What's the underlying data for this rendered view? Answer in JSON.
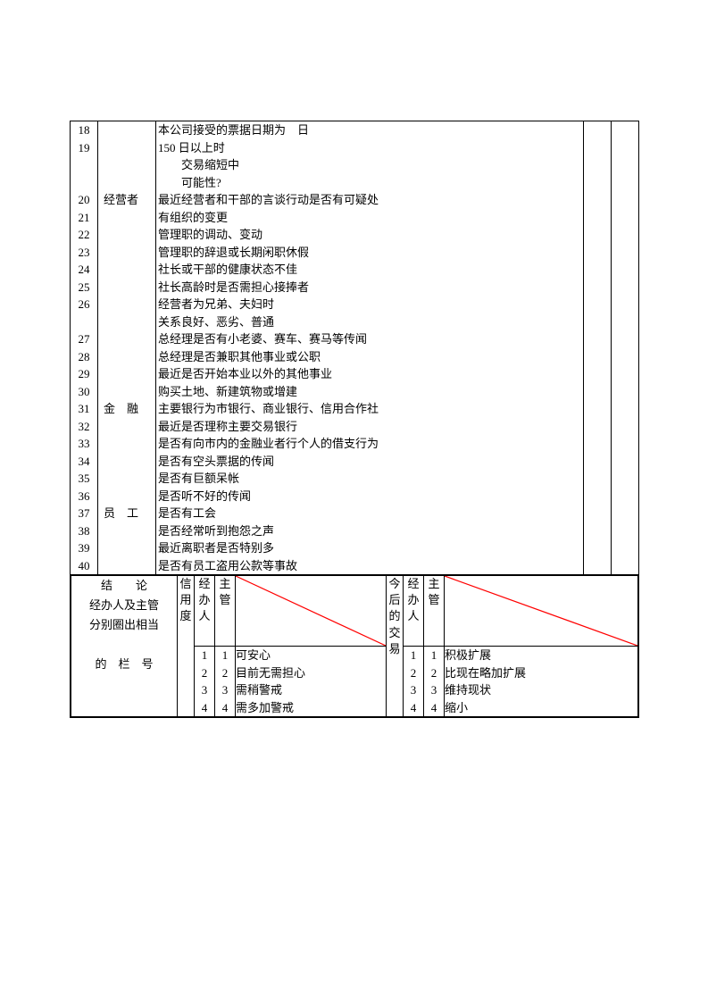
{
  "rows": [
    {
      "num": "18",
      "cat": "",
      "lines": [
        "本公司接受的票据日期为　日"
      ]
    },
    {
      "num": "19",
      "cat": "",
      "lines": [
        "150 日以上时",
        "　　交易缩短中",
        "　　可能性?"
      ]
    },
    {
      "num": "20",
      "cat": "经营者",
      "lines": [
        "最近经营者和干部的言谈行动是否有可疑处"
      ]
    },
    {
      "num": "21",
      "cat": "",
      "lines": [
        "有组织的变更"
      ]
    },
    {
      "num": "22",
      "cat": "",
      "lines": [
        "管理职的调动、变动"
      ]
    },
    {
      "num": "23",
      "cat": "",
      "lines": [
        "管理职的辞退或长期闲职休假"
      ]
    },
    {
      "num": "24",
      "cat": "",
      "lines": [
        "社长或干部的健康状态不佳"
      ]
    },
    {
      "num": "25",
      "cat": "",
      "lines": [
        "社长高龄时是否需担心接捧者"
      ]
    },
    {
      "num": "26",
      "cat": "",
      "lines": [
        "经营者为兄弟、夫妇时",
        "关系良好、恶劣、普通"
      ]
    },
    {
      "num": "27",
      "cat": "",
      "lines": [
        "总经理是否有小老婆、赛车、赛马等传闻"
      ]
    },
    {
      "num": "28",
      "cat": "",
      "lines": [
        "总经理是否兼职其他事业或公职"
      ]
    },
    {
      "num": "29",
      "cat": "",
      "lines": [
        "最近是否开始本业以外的其他事业"
      ]
    },
    {
      "num": "30",
      "cat": "",
      "lines": [
        "购买土地、新建筑物或增建"
      ]
    },
    {
      "num": "31",
      "cat": "金　融",
      "lines": [
        "主要银行为市银行、商业银行、信用合作社"
      ]
    },
    {
      "num": "32",
      "cat": "",
      "lines": [
        "最近是否理称主要交易银行"
      ]
    },
    {
      "num": "33",
      "cat": "",
      "lines": [
        "是否有向市内的金融业者行个人的借支行为"
      ]
    },
    {
      "num": "34",
      "cat": "",
      "lines": [
        "是否有空头票据的传闻"
      ]
    },
    {
      "num": "35",
      "cat": "",
      "lines": [
        "是否有巨额呆帐"
      ]
    },
    {
      "num": "36",
      "cat": "",
      "lines": [
        "是否听不好的传闻"
      ]
    },
    {
      "num": "37",
      "cat": "员　工",
      "lines": [
        "是否有工会"
      ]
    },
    {
      "num": "38",
      "cat": "",
      "lines": [
        "是否经常听到抱怨之声"
      ]
    },
    {
      "num": "39",
      "cat": "",
      "lines": [
        "最近离职者是否特别多"
      ]
    },
    {
      "num": "40",
      "cat": "",
      "lines": [
        "是否有员工盗用公款等事故"
      ]
    }
  ],
  "bottom": {
    "conclusion_lines": [
      "结　　论",
      "经办人及主管",
      "分别圈出相当",
      "",
      "的　栏　号"
    ],
    "credit_label": "信用度",
    "handler_label": "经办人",
    "supervisor_label": "主管",
    "future_label": "今后的交易",
    "left_nums": [
      "1",
      "2",
      "3",
      "4"
    ],
    "left_options": [
      "可安心",
      "目前无需担心",
      "需稍警戒",
      "需多加警戒"
    ],
    "right_options": [
      "积极扩展",
      "比现在略加扩展",
      "维持现状",
      "缩小"
    ],
    "diag_color": "#ff0000"
  }
}
